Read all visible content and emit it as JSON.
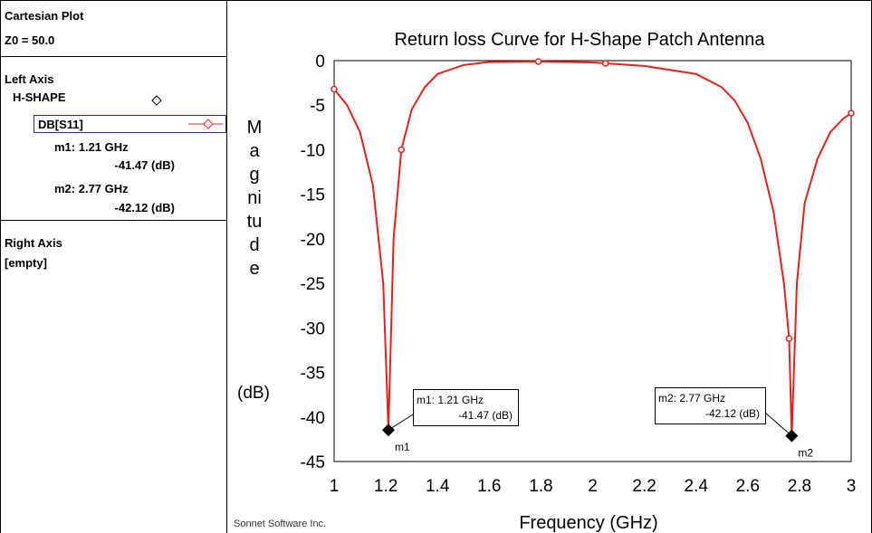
{
  "panel": {
    "title": "Cartesian Plot",
    "z0": "Z0 = 50.0",
    "left_axis": "Left Axis",
    "project": "H-SHAPE",
    "trace": "DB[S11]",
    "right_axis": "Right Axis",
    "right_axis_content": "[empty]"
  },
  "chart_data": {
    "type": "line",
    "title": "Return loss Curve for H-Shape Patch Antenna",
    "x_label": "Frequency (GHz)",
    "y_label": "Magnitude",
    "y_unit": "(dB)",
    "footer": "Sonnet Software Inc.",
    "x": [
      1.0,
      1.05,
      1.1,
      1.15,
      1.19,
      1.21,
      1.23,
      1.26,
      1.3,
      1.35,
      1.4,
      1.5,
      1.6,
      1.79,
      2.0,
      2.05,
      2.2,
      2.4,
      2.5,
      2.55,
      2.6,
      2.65,
      2.7,
      2.74,
      2.76,
      2.77,
      2.79,
      2.82,
      2.87,
      2.92,
      2.97,
      3.0
    ],
    "series": [
      {
        "name": "DB[S11]",
        "color": "#e8201c",
        "values": [
          -3.2,
          -5,
          -8,
          -14,
          -25,
          -41.47,
          -20,
          -10,
          -5.5,
          -3,
          -1.5,
          -0.5,
          -0.15,
          -0.1,
          -0.2,
          -0.3,
          -0.6,
          -1.5,
          -3,
          -4.5,
          -7,
          -11,
          -17,
          -25,
          -31.2,
          -42.12,
          -25,
          -16,
          -11,
          -8,
          -6.5,
          -5.9
        ]
      }
    ],
    "symbols": {
      "x": [
        1.0,
        1.26,
        1.79,
        2.05,
        2.76,
        3.0
      ],
      "values": [
        -3.2,
        -10,
        -0.1,
        -0.3,
        -31.2,
        -5.9
      ]
    },
    "markers": [
      {
        "name": "m1",
        "x": 1.21,
        "value": -41.47,
        "label": "m1: 1.21 GHz",
        "value_label": "-41.47  (dB)"
      },
      {
        "name": "m2",
        "x": 2.77,
        "value": -42.12,
        "label": "m2: 2.77 GHz",
        "value_label": "-42.12  (dB)"
      }
    ],
    "xlim": [
      1,
      3
    ],
    "xticks": [
      1,
      1.2,
      1.4,
      1.6,
      1.8,
      2,
      2.2,
      2.4,
      2.6,
      2.8,
      3
    ],
    "ylim": [
      -45,
      0
    ],
    "yticks": [
      0,
      -5,
      -10,
      -15,
      -20,
      -25,
      -30,
      -35,
      -40,
      -45
    ],
    "grid": false
  }
}
